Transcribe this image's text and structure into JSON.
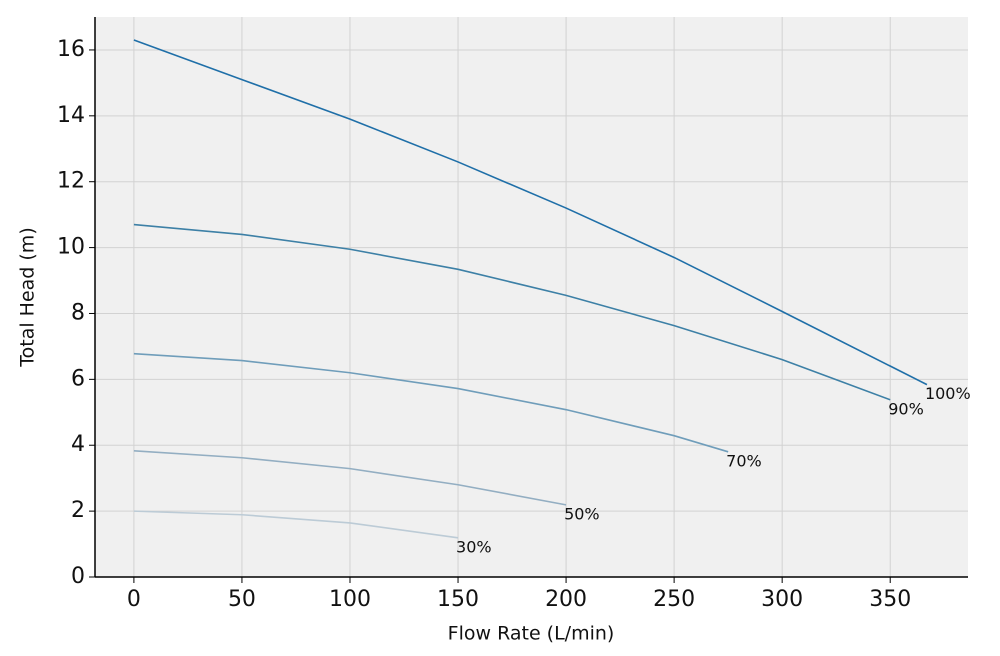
{
  "chart_data": {
    "type": "line",
    "x_label": "Flow Rate (L/min)",
    "y_label": "Total Head (m)",
    "xlim": [
      -18,
      386
    ],
    "ylim": [
      0,
      17
    ],
    "xticks": [
      0,
      50,
      100,
      150,
      200,
      250,
      300,
      350
    ],
    "yticks": [
      0,
      2,
      4,
      6,
      8,
      10,
      12,
      14,
      16
    ],
    "grid": true,
    "series": [
      {
        "name": "100%",
        "color": "#1f6fa8",
        "x": [
          0,
          50,
          100,
          150,
          200,
          250,
          300,
          367
        ],
        "values": [
          16.3,
          15.1,
          13.9,
          12.6,
          11.2,
          9.7,
          8.06,
          5.84
        ]
      },
      {
        "name": "90%",
        "color": "#3d80a6",
        "x": [
          0,
          50,
          100,
          150,
          200,
          250,
          300,
          350
        ],
        "values": [
          10.7,
          10.4,
          9.95,
          9.34,
          8.55,
          7.63,
          6.6,
          5.38
        ]
      },
      {
        "name": "70%",
        "color": "#6f9dba",
        "x": [
          0,
          50,
          100,
          150,
          200,
          250,
          275
        ],
        "values": [
          6.78,
          6.57,
          6.2,
          5.72,
          5.08,
          4.29,
          3.8
        ]
      },
      {
        "name": "50%",
        "color": "#93aec2",
        "x": [
          0,
          50,
          100,
          150,
          200
        ],
        "values": [
          3.83,
          3.62,
          3.29,
          2.8,
          2.19
        ]
      },
      {
        "name": "30%",
        "color": "#bccbd6",
        "x": [
          0,
          50,
          100,
          150
        ],
        "values": [
          2.0,
          1.89,
          1.64,
          1.19
        ]
      }
    ]
  }
}
